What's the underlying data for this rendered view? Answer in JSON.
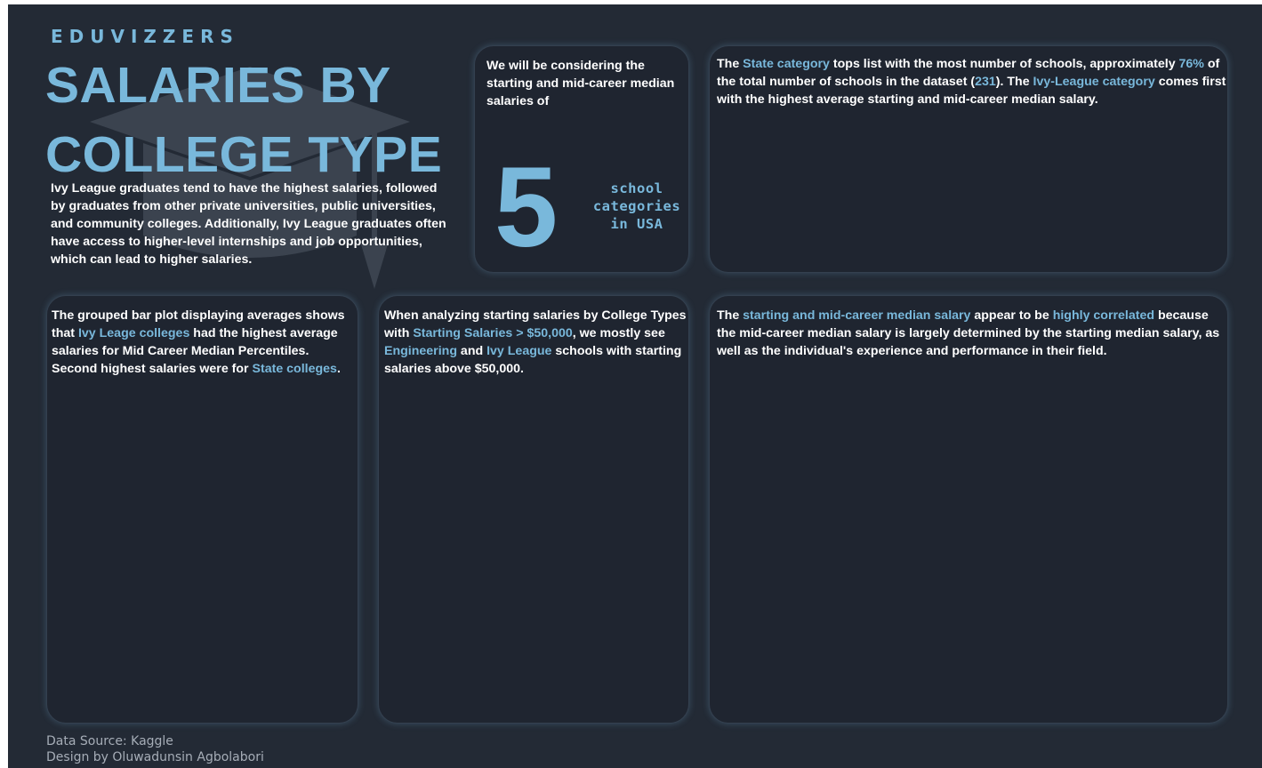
{
  "header": {
    "brand": "EDUVIZZERS",
    "title_line1": "SALARIES BY",
    "title_line2": "COLLEGE TYPE",
    "intro": "Ivy League graduates tend to have the highest salaries, followed by graduates from other private universities, public universities, and community colleges. Additionally, Ivy League graduates often have access to higher-level internships and job opportunities, which can lead to higher salaries."
  },
  "kpi_card": {
    "intro": "We will be considering the starting and mid-career median salaries of",
    "number": "5",
    "label_line1": "school",
    "label_line2": "categories",
    "label_line3": "in USA"
  },
  "state_card": {
    "t1": "The ",
    "h1": "State category",
    "t2": " tops list with the most number of schools, approximately ",
    "h2": "76%",
    "t3": " of the total number of schools in the dataset (",
    "h3": "231",
    "t4": "). The ",
    "h4": "Ivy-League category",
    "t5": " comes first with the highest average starting and mid-career median salary."
  },
  "bar_card": {
    "t1": "The grouped bar plot displaying averages shows that ",
    "h1": "Ivy Leage colleges",
    "t2": " had the highest average salaries for Mid Career Median Percentiles. Second highest salaries were for ",
    "h2": "State colleges",
    "t3": "."
  },
  "starting_card": {
    "t1": "When analyzing starting salaries by College Types with ",
    "h1": "Starting Salaries > $50,000",
    "t2": ", we mostly see ",
    "h2": "Engineering",
    "t3": " and ",
    "h3": "Ivy League",
    "t4": " schools with starting salaries above $50,000."
  },
  "correlation_card": {
    "t1": "The ",
    "h1": "starting and mid-career median salary",
    "t2": " appear to be ",
    "h2": "highly correlated",
    "t3": " because the mid-career median salary is largely determined by the starting median salary, as well as the individual's experience and performance in their field."
  },
  "footer": {
    "source": "Data Source: Kaggle",
    "design": "Design by Oluwadunsin Agbolabori"
  },
  "colors": {
    "background": "#232a35",
    "card": "#1f2530",
    "accent": "#79b8db",
    "text": "#ffffff"
  },
  "icons": {
    "background_watermark": "graduation-cap-icon"
  }
}
